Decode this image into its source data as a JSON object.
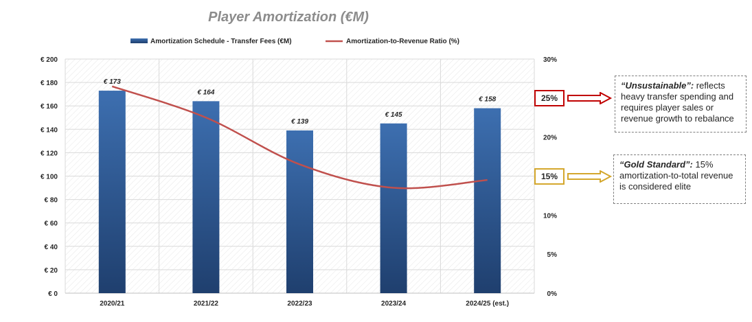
{
  "chart_data": {
    "type": "bar",
    "title": "Player Amortization (€M)",
    "categories": [
      "2020/21",
      "2021/22",
      "2022/23",
      "2023/24",
      "2024/25 (est.)"
    ],
    "series": [
      {
        "name": "Amortization Schedule - Transfer Fees (€M)",
        "kind": "bar",
        "axis": "left",
        "values": [
          173,
          164,
          139,
          145,
          158
        ],
        "labels": [
          "€ 173",
          "€ 164",
          "€ 139",
          "€ 145",
          "€ 158"
        ],
        "color": "#2f5f9e"
      },
      {
        "name": "Amortization-to-Revenue Ratio (%)",
        "kind": "line",
        "axis": "right",
        "values": [
          26.5,
          22.5,
          16.5,
          13.5,
          14.5
        ],
        "color": "#c0504d"
      }
    ],
    "ylim_left": [
      0,
      200
    ],
    "ylim_right": [
      0,
      30
    ],
    "left_ticks": [
      "€ 0",
      "€ 20",
      "€ 40",
      "€ 60",
      "€ 80",
      "€ 100",
      "€ 120",
      "€ 140",
      "€ 160",
      "€ 180",
      "€ 200"
    ],
    "right_ticks": [
      "0%",
      "5%",
      "10%",
      "15%",
      "20%",
      "25%",
      "30%"
    ],
    "grid": true,
    "legend_position": "top"
  },
  "annotations": [
    {
      "value_label": "25%",
      "value": 25,
      "color": "#c00000",
      "heading": "“Unsustainable”:",
      "text": " reflects heavy transfer spending and requires player sales or revenue growth to rebalance"
    },
    {
      "value_label": "15%",
      "value": 15,
      "color": "#d4a72c",
      "heading": "“Gold Standard”:",
      "text": " 15% amortization-to-total revenue is considered elite"
    }
  ]
}
